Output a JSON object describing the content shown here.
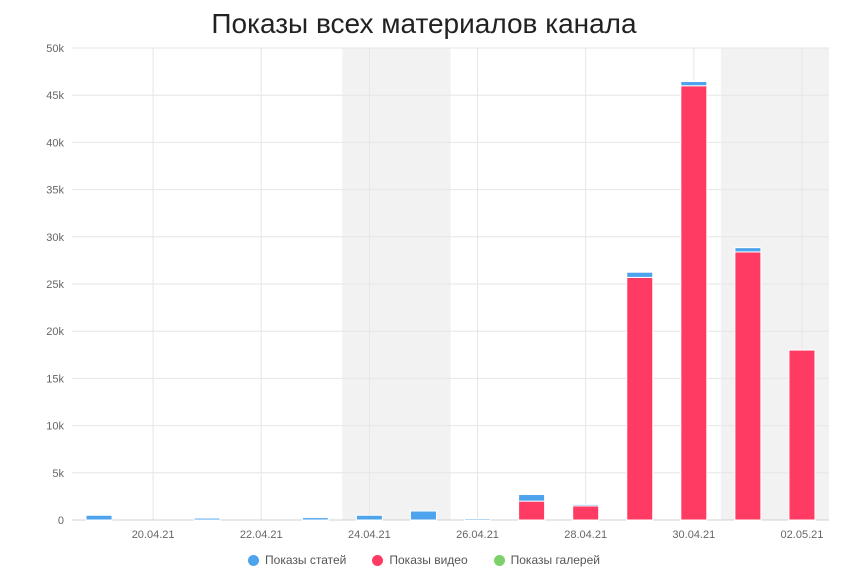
{
  "chart_data": {
    "type": "bar",
    "stacked": true,
    "title": "Показы всех материалов канала",
    "xlabel": "",
    "ylabel": "",
    "ylim": [
      0,
      50000
    ],
    "y_ticks": [
      "0",
      "5k",
      "10k",
      "15k",
      "20k",
      "25k",
      "30k",
      "35k",
      "40k",
      "45k",
      "50k"
    ],
    "x_tick_labels": [
      "20.04.21",
      "22.04.21",
      "24.04.21",
      "26.04.21",
      "28.04.21",
      "30.04.21",
      "02.05.21"
    ],
    "categories": [
      "19.04.21",
      "20.04.21",
      "21.04.21",
      "22.04.21",
      "23.04.21",
      "24.04.21",
      "25.04.21",
      "26.04.21",
      "27.04.21",
      "28.04.21",
      "29.04.21",
      "30.04.21",
      "01.05.21",
      "02.05.21"
    ],
    "weekend_bands": [
      [
        "24.04.21",
        "25.04.21"
      ],
      [
        "01.05.21",
        "02.05.21"
      ]
    ],
    "grid": true,
    "legend_position": "bottom-center",
    "series": [
      {
        "name": "Показы статей",
        "color": "#4da3ec",
        "values": [
          500,
          0,
          200,
          0,
          250,
          500,
          950,
          150,
          700,
          150,
          550,
          450,
          450,
          0
        ]
      },
      {
        "name": "Показы видео",
        "color": "#ff3b63",
        "values": [
          0,
          0,
          0,
          0,
          0,
          0,
          0,
          0,
          2000,
          1500,
          25700,
          46000,
          28400,
          18000
        ]
      },
      {
        "name": "Показы галерей",
        "color": "#7ed16a",
        "values": [
          0,
          0,
          0,
          0,
          0,
          0,
          0,
          0,
          0,
          0,
          0,
          0,
          0,
          0
        ]
      }
    ]
  }
}
